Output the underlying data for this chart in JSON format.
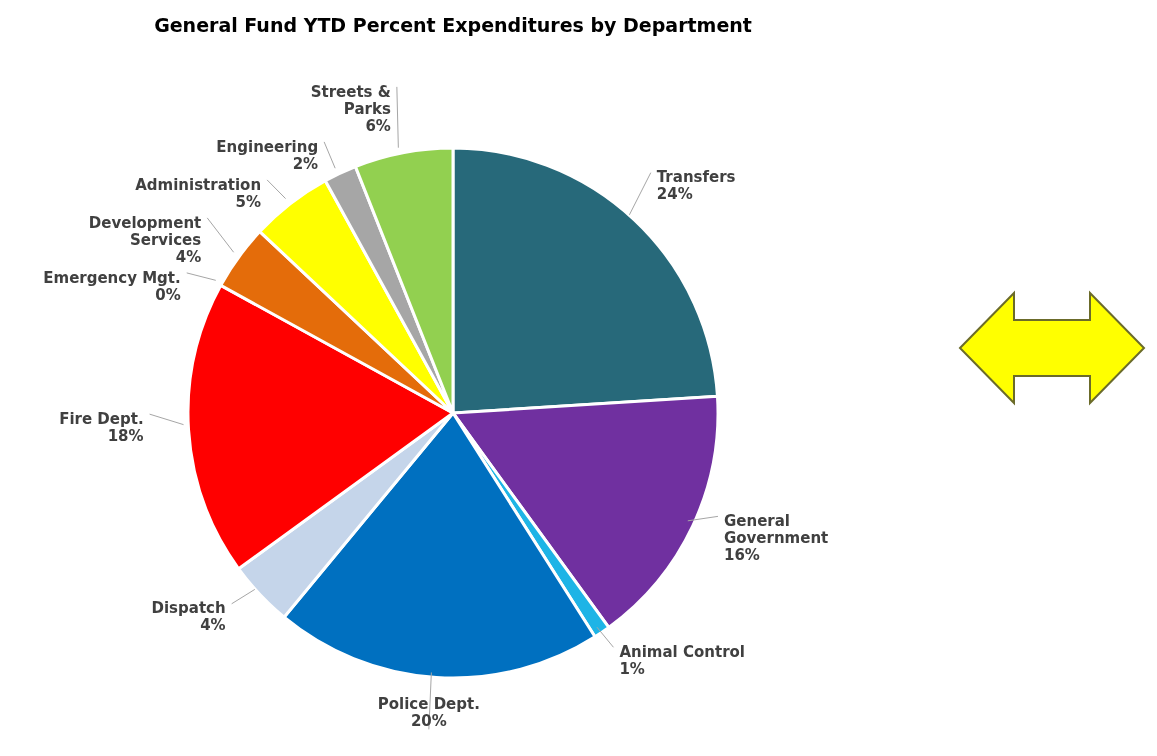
{
  "chart_data": {
    "type": "pie",
    "title": "General Fund YTD Percent Expenditures by Department",
    "categories": [
      "Transfers",
      "General Government",
      "Animal Control",
      "Police Dept.",
      "Dispatch",
      "Fire Dept.",
      "Emergency Mgt.",
      "Development Services",
      "Administration",
      "Engineering",
      "Streets & Parks"
    ],
    "values": [
      24,
      16,
      1,
      20,
      4,
      18,
      0,
      4,
      5,
      2,
      6
    ],
    "value_labels": [
      "24%",
      "16%",
      "1%",
      "20%",
      "4%",
      "18%",
      "0%",
      "4%",
      "5%",
      "2%",
      "6%"
    ],
    "colors": [
      "#27697a",
      "#7030a0",
      "#1eb4e6",
      "#0070c0",
      "#c5d5ea",
      "#ff0000",
      "#7f7f7f",
      "#e46c0a",
      "#ffff00",
      "#a6a6a6",
      "#92d050"
    ]
  }
}
